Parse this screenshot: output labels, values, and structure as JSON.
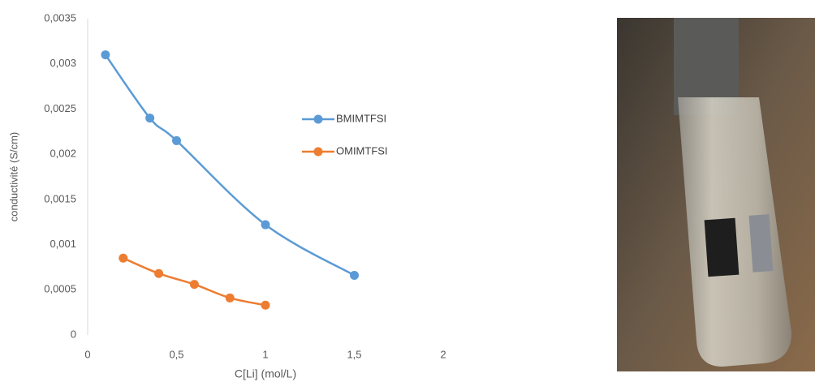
{
  "chart_data": {
    "type": "scatter",
    "smooth": true,
    "x_label": "C[Li] (mol/L)",
    "y_label": "conductivité (S/cm)",
    "xlim": [
      0,
      2
    ],
    "xticks": [
      0,
      {
        "value": 0.5,
        "label": "0,5"
      },
      1,
      {
        "value": 1.5,
        "label": "1,5"
      },
      2
    ],
    "ylim": [
      0,
      0.0035
    ],
    "yticks": [
      0,
      {
        "value": 0.0005,
        "label": "0,0005"
      },
      {
        "value": 0.001,
        "label": "0,001"
      },
      {
        "value": 0.0015,
        "label": "0,0015"
      },
      {
        "value": 0.002,
        "label": "0,002"
      },
      {
        "value": 0.0025,
        "label": "0,0025"
      },
      {
        "value": 0.003,
        "label": "0,003"
      },
      {
        "value": 0.0035,
        "label": "0,0035"
      }
    ],
    "legend": "right",
    "series": [
      {
        "name": "BMIMTFSI",
        "color": "#5b9bd5",
        "x": [
          0.1,
          0.35,
          0.5,
          1,
          1.5
        ],
        "values": [
          0.0031,
          0.0024,
          0.00215,
          0.00122,
          0.00066
        ]
      },
      {
        "name": "OMIMTFSI",
        "color": "#ed7d31",
        "x": [
          0.2,
          0.4,
          0.6,
          0.8,
          1
        ],
        "values": [
          0.00085,
          0.00068,
          0.00056,
          0.00041,
          0.00033
        ]
      }
    ]
  }
}
